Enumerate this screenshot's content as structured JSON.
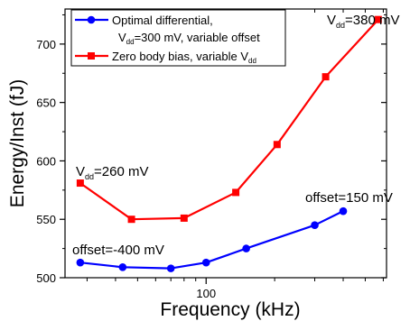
{
  "chart_data": {
    "type": "line",
    "xlabel": "Frequency (kHz)",
    "ylabel": "Energy/Inst (fJ)",
    "x_scale": "log",
    "xlim": [
      24,
      620
    ],
    "ylim": [
      500,
      730
    ],
    "x_ticks": [
      100
    ],
    "x_tick_labels": [
      "100"
    ],
    "y_ticks": [
      500,
      550,
      600,
      650,
      700
    ],
    "y_tick_labels": [
      "500",
      "550",
      "600",
      "650",
      "700"
    ],
    "grid": false,
    "legend_position": "top-left",
    "series": [
      {
        "name_lines": [
          "Optimal differential,",
          "V",
          "dd",
          "=300 mV, variable offset"
        ],
        "color": "#0000ff",
        "marker": "circle",
        "x": [
          28,
          43,
          70,
          100,
          150,
          300,
          400
        ],
        "y": [
          513,
          509,
          508,
          513,
          525,
          545,
          557
        ]
      },
      {
        "name_lines": [
          "Zero body bias, variable V",
          "dd"
        ],
        "color": "#ff0000",
        "marker": "square",
        "x": [
          28,
          47,
          80,
          135,
          205,
          335,
          570
        ],
        "y": [
          581,
          550,
          551,
          573,
          614,
          672,
          721
        ]
      }
    ],
    "annotations": [
      {
        "id": "vdd380",
        "text": "V",
        "sub": "dd",
        "rest": "=380 mV"
      },
      {
        "id": "vdd260",
        "text": "V",
        "sub": "dd",
        "rest": "=260 mV"
      },
      {
        "id": "offset150",
        "text": "offset=150 mV"
      },
      {
        "id": "offsetm400",
        "text": "offset=-400 mV"
      }
    ]
  }
}
